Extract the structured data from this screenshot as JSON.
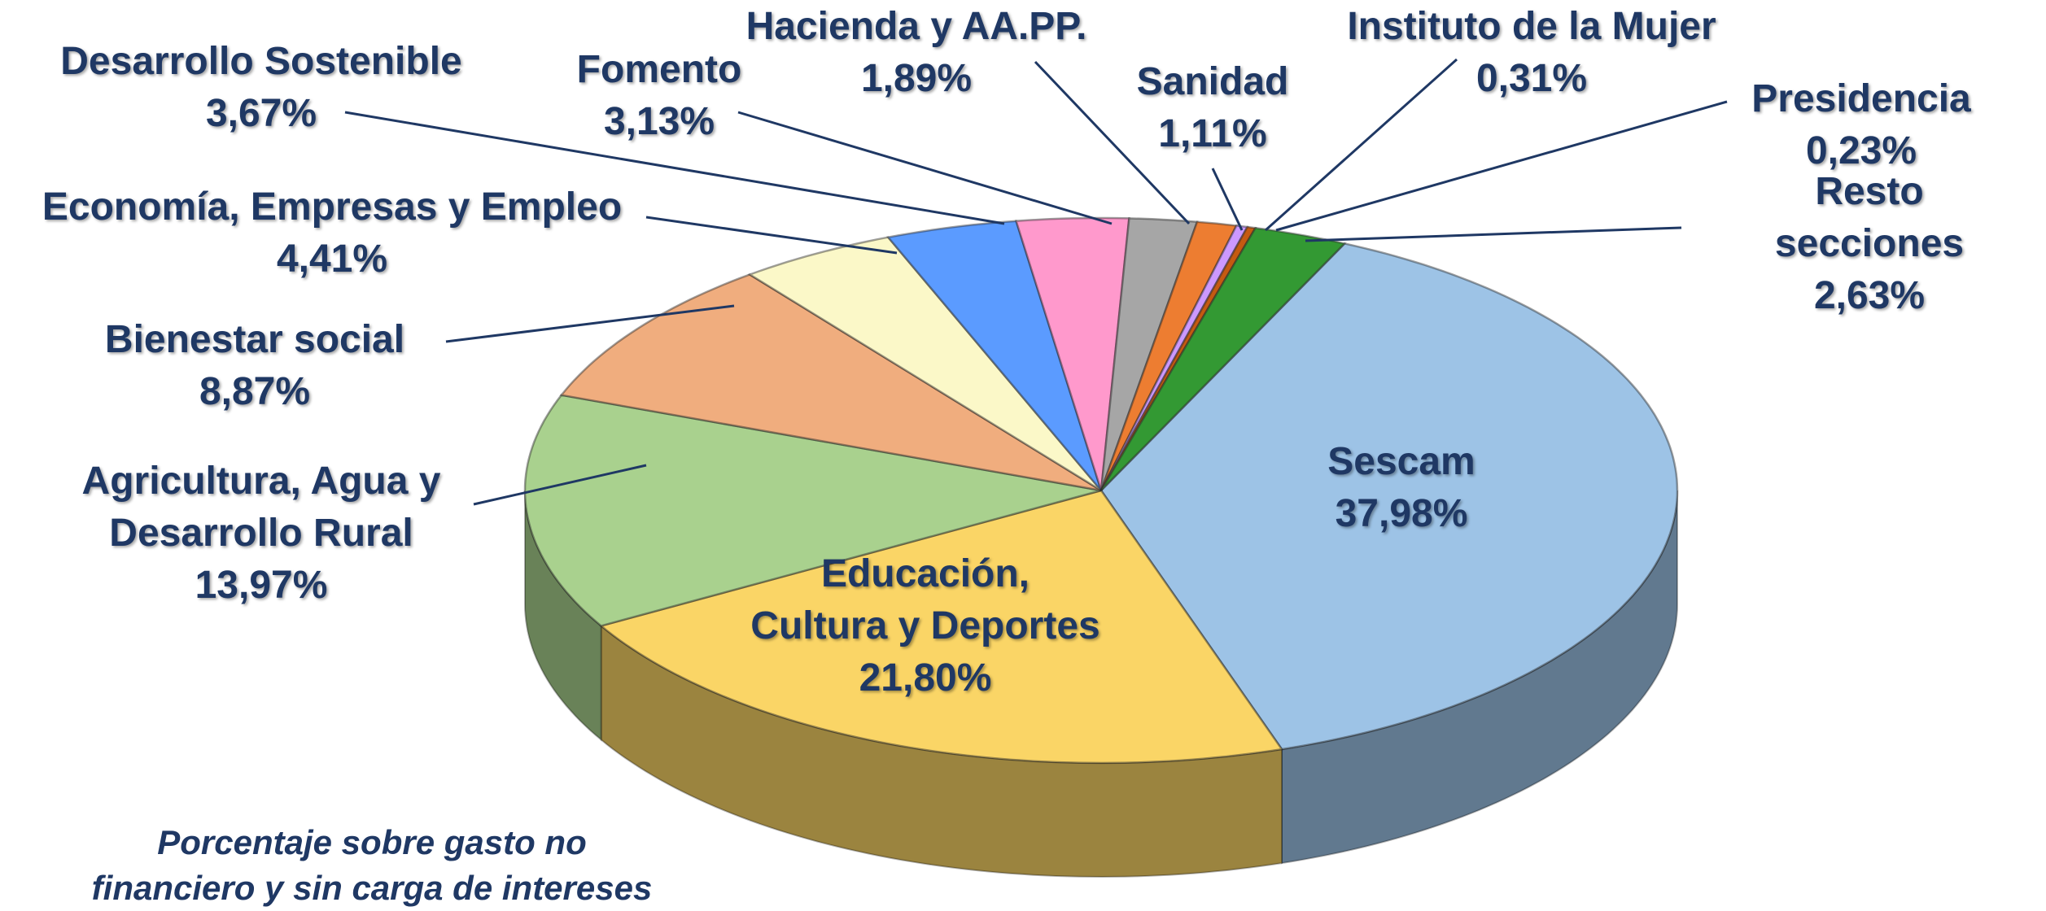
{
  "chart_data": {
    "type": "pie",
    "categories": [
      "Sescam",
      "Educación,\nCultura y Deportes",
      "Agricultura, Agua y\nDesarrollo Rural",
      "Bienestar social",
      "Economía, Empresas y Empleo",
      "Desarrollo Sostenible",
      "Fomento",
      "Hacienda y AA.PP.",
      "Sanidad",
      "Instituto de la Mujer",
      "Presidencia",
      "Resto secciones"
    ],
    "values": [
      37.98,
      21.8,
      13.97,
      8.87,
      4.41,
      3.67,
      3.13,
      1.89,
      1.11,
      0.31,
      0.23,
      2.63
    ],
    "value_labels": [
      "37,98%",
      "21,80%",
      "13,97%",
      "8,87%",
      "4,41%",
      "3,67%",
      "3,13%",
      "1,89%",
      "1,11%",
      "0,31%",
      "0,23%",
      "2,63%"
    ],
    "colors": [
      "#9dc3e6",
      "#fad566",
      "#a9d18e",
      "#f0ad7e",
      "#fbf8c8",
      "#5b9bff",
      "#ff99cc",
      "#a6a6a6",
      "#ed7d31",
      "#cc99ff",
      "#c55a11",
      "#339933"
    ],
    "note": "Porcentaje sobre gasto no\nfinanciero y sin carga de intereses"
  }
}
